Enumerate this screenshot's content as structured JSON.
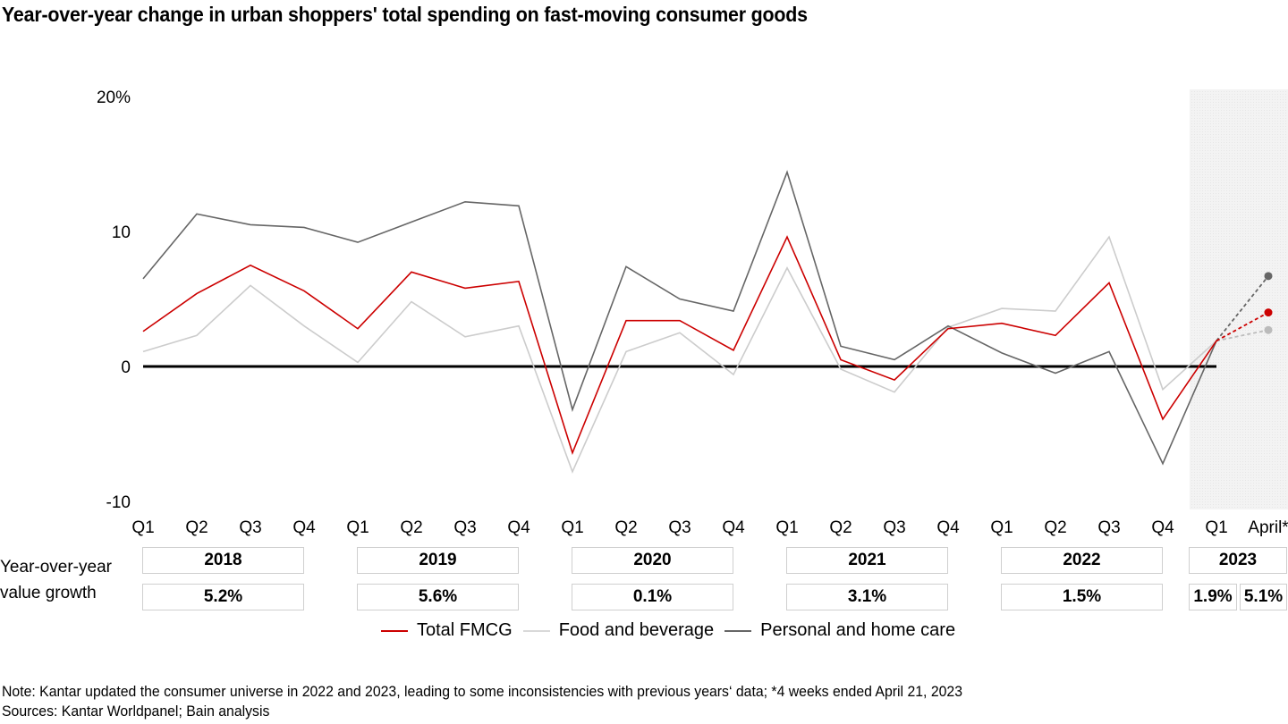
{
  "title": "Year-over-year change in urban shoppers' total spending on fast-moving consumer goods",
  "chart_data": {
    "type": "line",
    "title": "Year-over-year change in urban shoppers' total spending on fast-moving consumer goods",
    "xlabel": "",
    "ylabel": "",
    "ylim": [
      -10,
      20
    ],
    "yticks": [
      {
        "value": 20,
        "label": "20%"
      },
      {
        "value": 10,
        "label": "10"
      },
      {
        "value": 0,
        "label": "0"
      },
      {
        "value": -10,
        "label": "-10"
      }
    ],
    "grid": false,
    "legend_position": "bottom",
    "x": [
      "Q1 2018",
      "Q2 2018",
      "Q3 2018",
      "Q4 2018",
      "Q1 2019",
      "Q2 2019",
      "Q3 2019",
      "Q4 2019",
      "Q1 2020",
      "Q2 2020",
      "Q3 2020",
      "Q4 2020",
      "Q1 2021",
      "Q2 2021",
      "Q3 2021",
      "Q4 2021",
      "Q1 2022",
      "Q2 2022",
      "Q3 2022",
      "Q4 2022",
      "Q1 2023",
      "April 2023*"
    ],
    "categories": [
      "Q1",
      "Q2",
      "Q3",
      "Q4",
      "Q1",
      "Q2",
      "Q3",
      "Q4",
      "Q1",
      "Q2",
      "Q3",
      "Q4",
      "Q1",
      "Q2",
      "Q3",
      "Q4",
      "Q1",
      "Q2",
      "Q3",
      "Q4",
      "Q1",
      "April*"
    ],
    "projected_from_index": 20,
    "highlight_region": {
      "from": "Q1 2023",
      "to": "April 2023*"
    },
    "series": [
      {
        "name": "Total FMCG",
        "color": "#cc0000",
        "values": [
          2.6,
          5.4,
          7.5,
          5.6,
          2.8,
          7.0,
          5.8,
          6.3,
          -6.4,
          3.4,
          3.4,
          1.2,
          9.6,
          0.5,
          -1.0,
          2.8,
          3.2,
          2.3,
          6.2,
          -3.9,
          1.9,
          4.0
        ]
      },
      {
        "name": "Food and beverage",
        "color": "#cccccc",
        "values": [
          1.1,
          2.3,
          6.0,
          3.0,
          0.3,
          4.8,
          2.2,
          3.0,
          -7.8,
          1.1,
          2.5,
          -0.6,
          7.3,
          -0.2,
          -1.9,
          2.9,
          4.3,
          4.1,
          9.6,
          -1.7,
          1.9,
          2.7
        ]
      },
      {
        "name": "Personal and home care",
        "color": "#666666",
        "values": [
          6.5,
          11.3,
          10.5,
          10.3,
          9.2,
          10.7,
          12.2,
          11.9,
          -3.2,
          7.4,
          5.0,
          4.1,
          14.4,
          1.5,
          0.5,
          3.0,
          1.0,
          -0.5,
          1.1,
          -7.2,
          1.9,
          6.7
        ]
      }
    ],
    "annual_growth": [
      {
        "year": "2018",
        "values": [
          "5.2%"
        ]
      },
      {
        "year": "2019",
        "values": [
          "5.6%"
        ]
      },
      {
        "year": "2020",
        "values": [
          "0.1%"
        ]
      },
      {
        "year": "2021",
        "values": [
          "3.1%"
        ]
      },
      {
        "year": "2022",
        "values": [
          "1.5%"
        ]
      },
      {
        "year": "2023",
        "values": [
          "1.9%",
          "5.1%"
        ]
      }
    ]
  },
  "row_label": "Year-over-year value growth",
  "row_label_lines": [
    "Year-over-year",
    "value growth"
  ],
  "legend": [
    {
      "label": "Total FMCG",
      "color": "#cc0000"
    },
    {
      "label": "Food and beverage",
      "color": "#d9d9d9"
    },
    {
      "label": "Personal and home care",
      "color": "#666666"
    }
  ],
  "note": "Note: Kantar updated the consumer universe in 2022 and 2023, leading to some inconsistencies with previous years‘ data; *4 weeks ended April 21, 2023",
  "sources": "Sources: Kantar Worldpanel; Bain analysis"
}
